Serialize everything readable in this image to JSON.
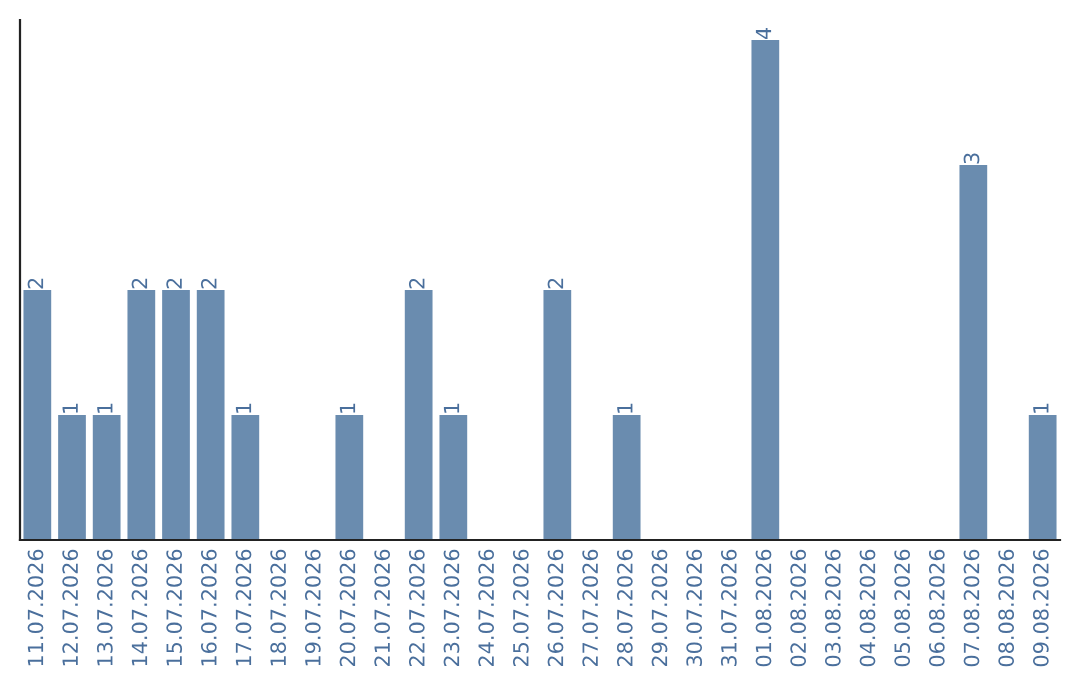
{
  "chart_data": {
    "type": "bar",
    "categories": [
      "11.07.2026",
      "12.07.2026",
      "13.07.2026",
      "14.07.2026",
      "15.07.2026",
      "16.07.2026",
      "17.07.2026",
      "18.07.2026",
      "19.07.2026",
      "20.07.2026",
      "21.07.2026",
      "22.07.2026",
      "23.07.2026",
      "24.07.2026",
      "25.07.2026",
      "26.07.2026",
      "27.07.2026",
      "28.07.2026",
      "29.07.2026",
      "30.07.2026",
      "31.07.2026",
      "01.08.2026",
      "02.08.2026",
      "03.08.2026",
      "04.08.2026",
      "05.08.2026",
      "06.08.2026",
      "07.08.2026",
      "08.08.2026",
      "09.08.2026"
    ],
    "values": [
      2,
      1,
      1,
      2,
      2,
      2,
      1,
      0,
      0,
      1,
      0,
      2,
      1,
      0,
      0,
      2,
      0,
      1,
      0,
      0,
      0,
      4,
      0,
      0,
      0,
      0,
      0,
      3,
      0,
      1
    ],
    "value_labels": [
      "2",
      "1",
      "1",
      "2",
      "2",
      "2",
      "1",
      null,
      null,
      "1",
      null,
      "2",
      "1",
      null,
      null,
      "2",
      null,
      "1",
      null,
      null,
      null,
      "4",
      null,
      null,
      null,
      null,
      null,
      "3",
      null,
      "1"
    ],
    "color": "#6a8caf",
    "ylim": [
      0,
      4.16
    ],
    "tick_labels": "x",
    "grid": false,
    "legend": false
  }
}
